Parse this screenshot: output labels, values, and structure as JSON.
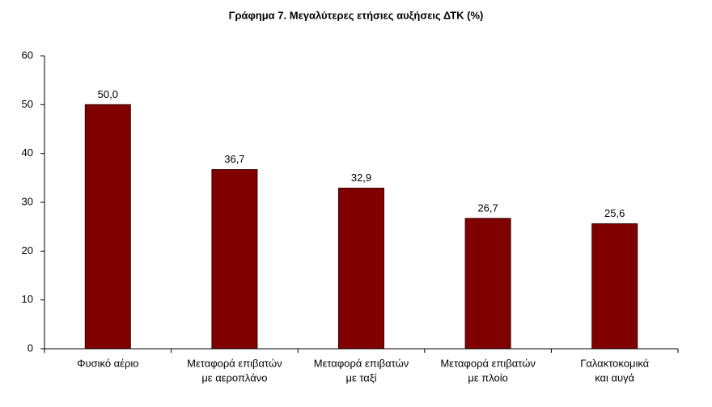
{
  "chart_data": {
    "type": "bar",
    "title": "Γράφημα 7. Μεγαλύτερες ετήσιες αυξήσεις ΔΤΚ (%)",
    "categories": [
      [
        "Φυσικό αέριο"
      ],
      [
        "Μεταφορά επιβατών",
        "με αεροπλάνο"
      ],
      [
        "Μεταφορά επιβατών",
        "με ταξί"
      ],
      [
        "Μεταφορά επιβατών",
        "με πλοίο"
      ],
      [
        "Γαλακτοκομικά",
        "και αυγά"
      ]
    ],
    "values": [
      50.0,
      36.7,
      32.9,
      26.7,
      25.6
    ],
    "value_labels": [
      "50,0",
      "36,7",
      "32,9",
      "26,7",
      "25,6"
    ],
    "color": "#800000",
    "ylim": [
      0,
      60
    ],
    "yticks": [
      0,
      10,
      20,
      30,
      40,
      50,
      60
    ],
    "grid": false
  }
}
